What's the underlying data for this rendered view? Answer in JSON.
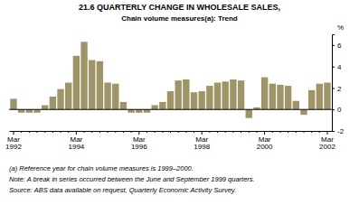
{
  "chart_data": {
    "type": "bar",
    "title": "21.6  QUARTERLY CHANGE IN WHOLESALE SALES,",
    "subtitle": "Chain volume measures(a): Trend",
    "ylabel": "%",
    "annotations": [
      "(a) Reference year for chain volume measures is 1999–2000.",
      "Note: A break in series occurred between the June and September 1999 quarters.",
      "Source: ABS data available on request, Quarterly Economic Activity Survey."
    ],
    "categories": [
      "Mar\n1992",
      null,
      null,
      null,
      null,
      null,
      null,
      null,
      "Mar\n1994",
      null,
      null,
      null,
      null,
      null,
      null,
      null,
      "Mar\n1996",
      null,
      null,
      null,
      null,
      null,
      null,
      null,
      "Mar\n1998",
      null,
      null,
      null,
      null,
      null,
      null,
      null,
      "Mar\n2000",
      null,
      null,
      null,
      null,
      null,
      null,
      null,
      "Mar\n2002"
    ],
    "values": [
      1.0,
      -0.3,
      -0.3,
      -0.3,
      0.4,
      1.2,
      1.9,
      2.5,
      5.0,
      6.3,
      4.6,
      4.5,
      2.5,
      2.4,
      0.7,
      -0.3,
      -0.3,
      -0.3,
      0.4,
      0.7,
      1.7,
      2.7,
      2.8,
      1.6,
      1.7,
      2.2,
      2.5,
      2.6,
      2.8,
      2.7,
      -0.8,
      0.2,
      3.0,
      2.4,
      2.3,
      2.2,
      0.8,
      -0.5,
      1.8,
      2.4,
      2.5
    ],
    "color": "#9e9468",
    "ylim": [
      -2,
      7
    ],
    "yticks": [
      -2,
      0,
      2,
      4,
      6
    ],
    "grid": false
  }
}
